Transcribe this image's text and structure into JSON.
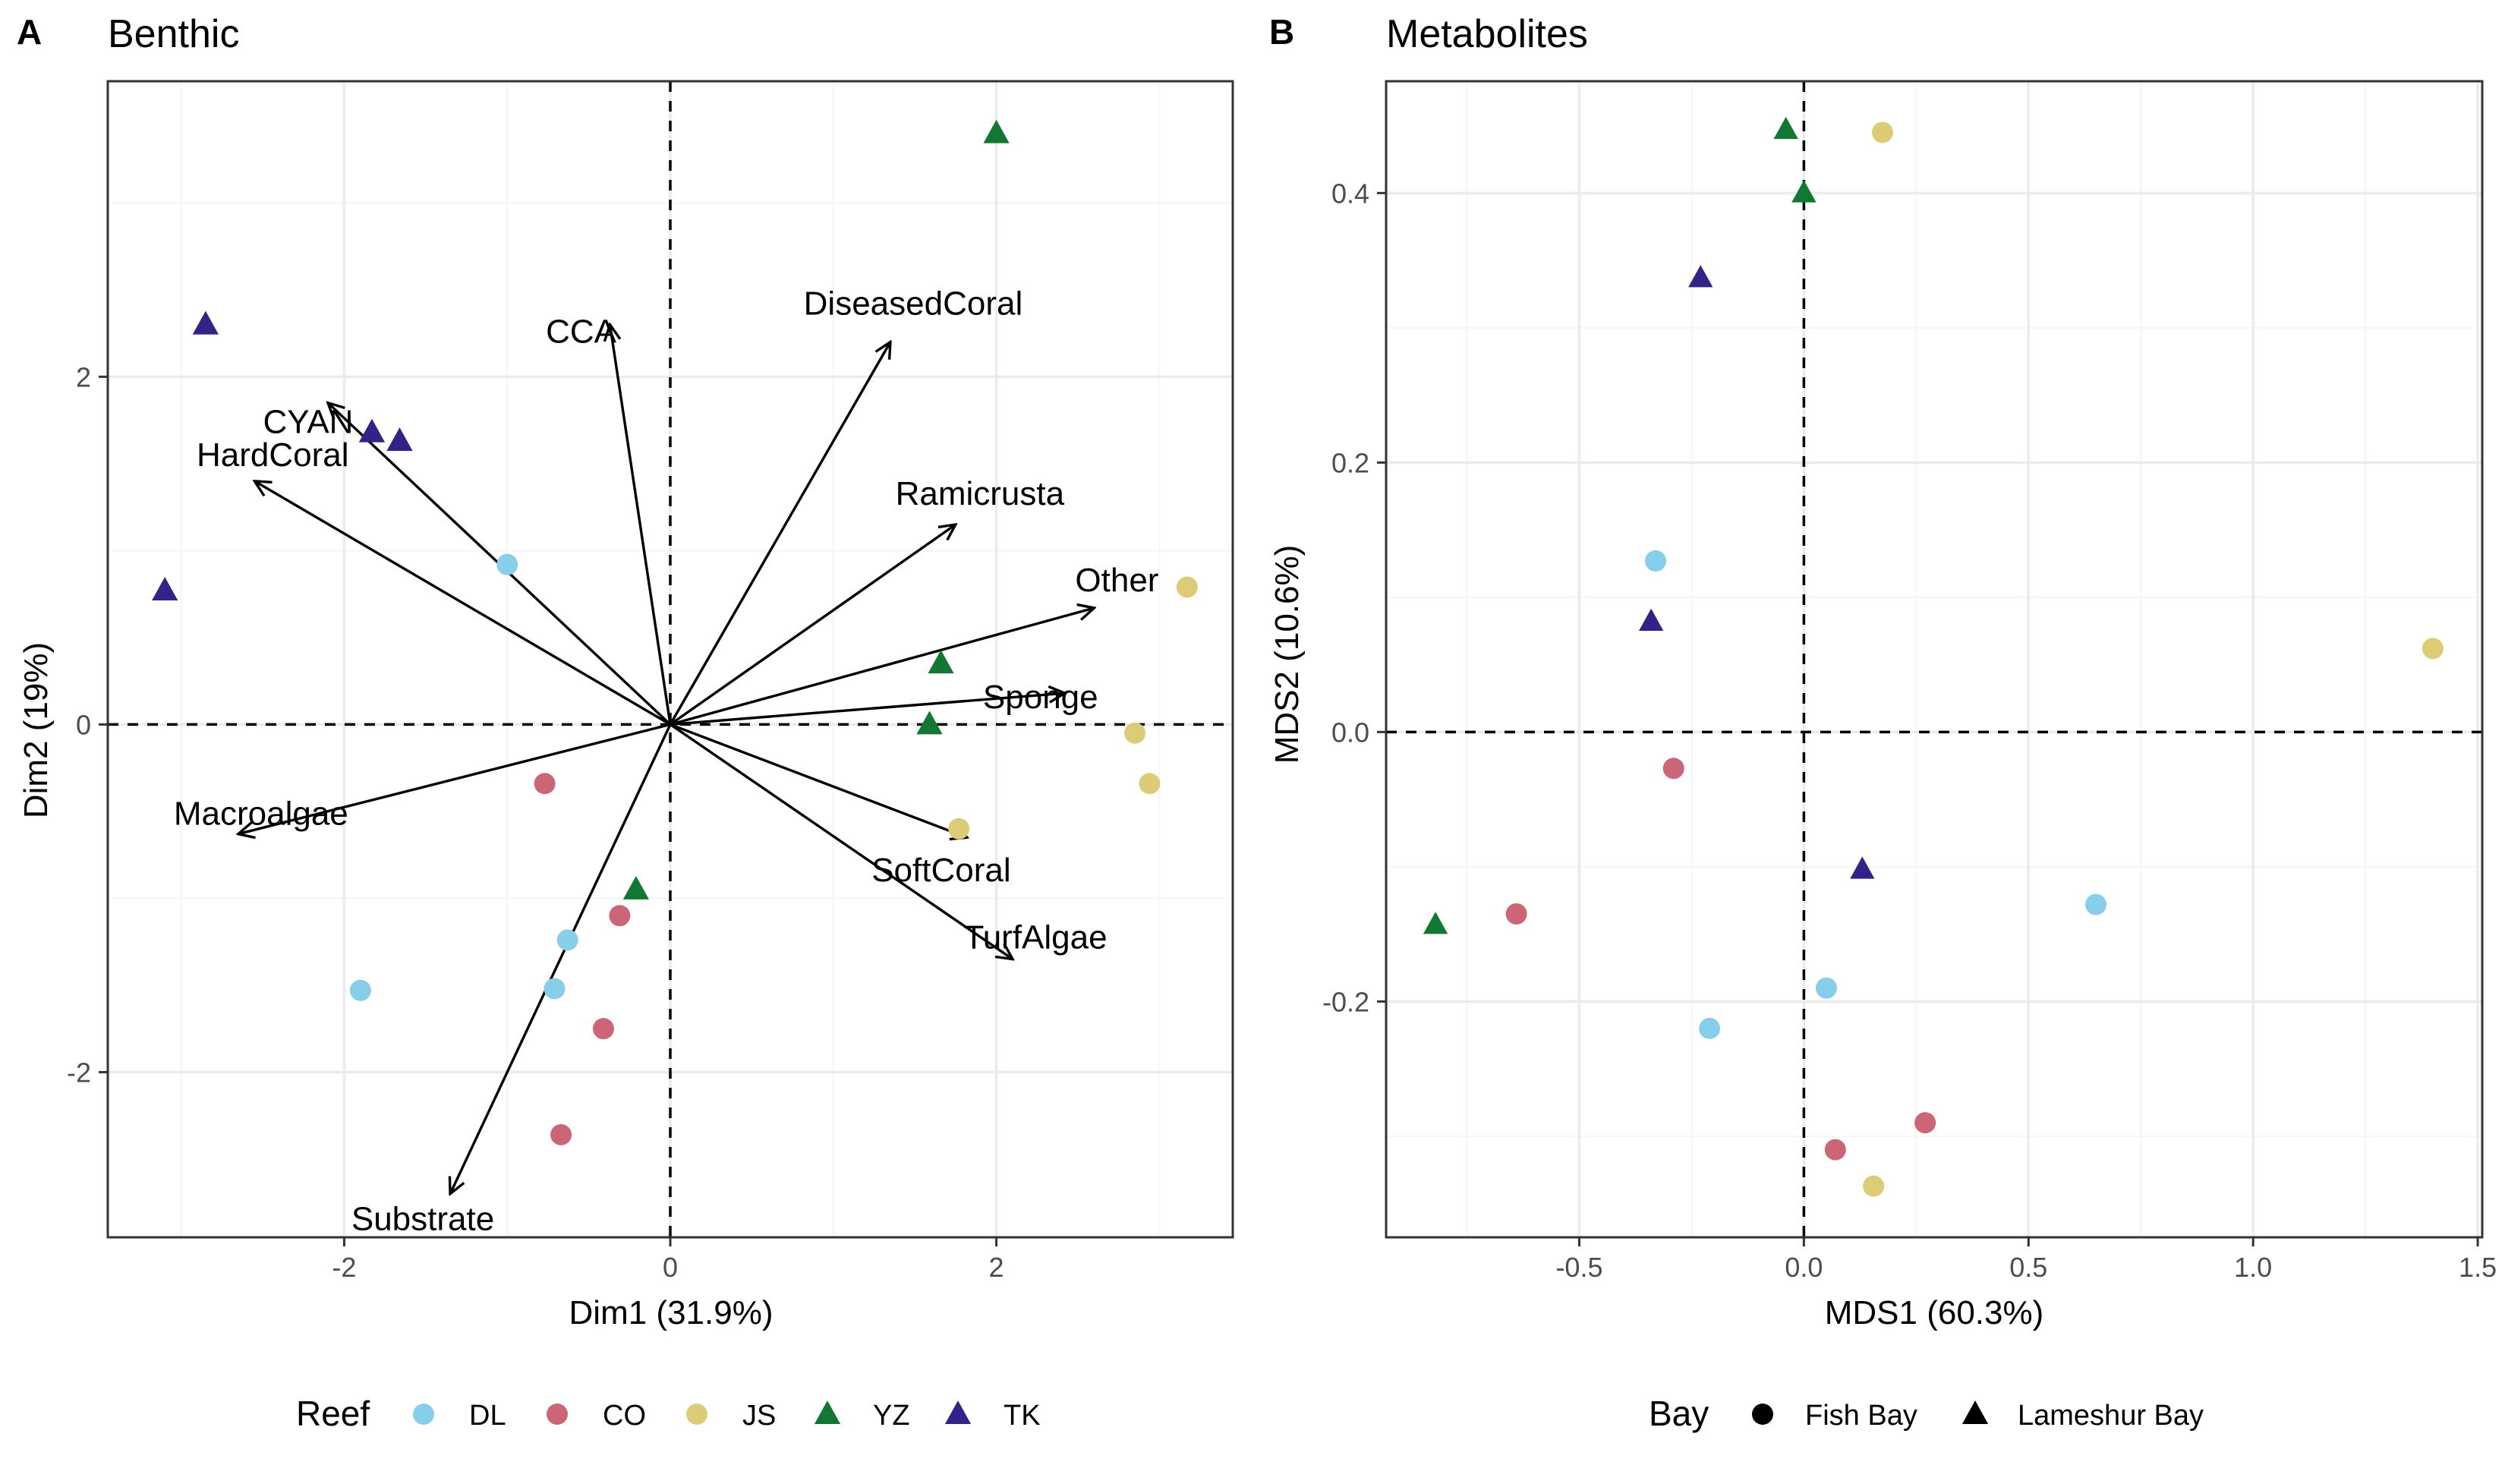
{
  "figure": {
    "legend": {
      "reef_title": "Reef",
      "bay_title": "Bay"
    }
  },
  "colors": {
    "DL": "#87CEEB",
    "CO": "#CC6677",
    "JS": "#DDCC77",
    "YZ": "#117733",
    "TK": "#332288",
    "axis": "#333333",
    "grid": "#EBEBEB",
    "grid_minor": "#F5F5F5",
    "tick_label": "#4D4D4D"
  },
  "chart_data": [
    {
      "type": "scatter",
      "panel_tag": "A",
      "title": "Benthic",
      "xlabel": "Dim1 (31.9%)",
      "ylabel": "Dim2 (19%)",
      "xlim": [
        -3.45,
        3.45
      ],
      "ylim": [
        -2.95,
        3.7
      ],
      "xticks": [
        -2,
        0,
        2
      ],
      "yticks": [
        -2,
        0,
        2
      ],
      "xtick_labels": [
        "-2",
        "0",
        "2"
      ],
      "ytick_labels": [
        "-2",
        "0",
        "2"
      ],
      "grid": true,
      "reference_lines": {
        "x": 0,
        "y": 0
      },
      "vectors": [
        {
          "label": "CCA",
          "x": -0.37,
          "y": 2.3
        },
        {
          "label": "DiseasedCoral",
          "x": 1.35,
          "y": 2.2
        },
        {
          "label": "CYAN",
          "x": -2.1,
          "y": 1.85
        },
        {
          "label": "HardCoral",
          "x": -2.55,
          "y": 1.4
        },
        {
          "label": "Ramicrusta",
          "x": 1.75,
          "y": 1.15
        },
        {
          "label": "Other",
          "x": 2.6,
          "y": 0.67
        },
        {
          "label": "Sponge",
          "x": 2.42,
          "y": 0.18
        },
        {
          "label": "Macroalgae",
          "x": -2.65,
          "y": -0.63
        },
        {
          "label": "SoftCoral",
          "x": 1.82,
          "y": -0.65
        },
        {
          "label": "TurfAlgae",
          "x": 2.1,
          "y": -1.35
        },
        {
          "label": "Substrate",
          "x": -1.35,
          "y": -2.7
        }
      ],
      "series": [
        {
          "name": "DL",
          "shape": "circle",
          "points": [
            [
              -1.0,
              0.92
            ],
            [
              -0.63,
              -1.24
            ],
            [
              -0.71,
              -1.52
            ],
            [
              -1.9,
              -1.53
            ]
          ]
        },
        {
          "name": "CO",
          "shape": "circle",
          "points": [
            [
              -0.77,
              -0.34
            ],
            [
              -0.31,
              -1.1
            ],
            [
              -0.41,
              -1.75
            ],
            [
              -0.67,
              -2.36
            ]
          ]
        },
        {
          "name": "JS",
          "shape": "circle",
          "points": [
            [
              3.17,
              0.79
            ],
            [
              2.85,
              -0.05
            ],
            [
              2.94,
              -0.34
            ],
            [
              1.77,
              -0.6
            ]
          ]
        },
        {
          "name": "YZ",
          "shape": "triangle",
          "points": [
            [
              2.0,
              3.4
            ],
            [
              1.66,
              0.35
            ],
            [
              1.59,
              0.0
            ],
            [
              -0.21,
              -0.95
            ]
          ]
        },
        {
          "name": "TK",
          "shape": "triangle",
          "points": [
            [
              -2.85,
              2.3
            ],
            [
              -1.83,
              1.68
            ],
            [
              -1.66,
              1.63
            ],
            [
              -3.1,
              0.77
            ]
          ]
        }
      ]
    },
    {
      "type": "scatter",
      "panel_tag": "B",
      "title": "Metabolites",
      "xlabel": "MDS1 (60.3%)",
      "ylabel": "MDS2 (10.6%)",
      "xlim": [
        -0.93,
        1.51
      ],
      "ylim": [
        -0.375,
        0.483
      ],
      "xticks": [
        -0.5,
        0.0,
        0.5,
        1.0,
        1.5
      ],
      "yticks": [
        -0.2,
        0.0,
        0.2,
        0.4
      ],
      "xtick_labels": [
        "-0.5",
        "0.0",
        "0.5",
        "1.0",
        "1.5"
      ],
      "ytick_labels": [
        "-0.2",
        "0.0",
        "0.2",
        "0.4"
      ],
      "grid": true,
      "reference_lines": {
        "x": 0,
        "y": 0
      },
      "series": [
        {
          "name": "DL",
          "shape": "circle",
          "points": [
            [
              -0.33,
              0.127
            ],
            [
              0.65,
              -0.128
            ],
            [
              0.05,
              -0.19
            ],
            [
              -0.21,
              -0.22
            ]
          ]
        },
        {
          "name": "CO",
          "shape": "circle",
          "points": [
            [
              -0.29,
              -0.027
            ],
            [
              -0.64,
              -0.135
            ],
            [
              0.07,
              -0.31
            ],
            [
              0.27,
              -0.29
            ]
          ]
        },
        {
          "name": "JS",
          "shape": "circle",
          "points": [
            [
              0.175,
              0.445
            ],
            [
              1.4,
              0.062
            ],
            [
              0.155,
              -0.337
            ]
          ]
        },
        {
          "name": "YZ",
          "shape": "triangle",
          "points": [
            [
              -0.04,
              0.447
            ],
            [
              0.0,
              0.4
            ],
            [
              -0.82,
              -0.143
            ]
          ]
        },
        {
          "name": "TK",
          "shape": "triangle",
          "points": [
            [
              -0.23,
              0.337
            ],
            [
              -0.34,
              0.082
            ],
            [
              0.13,
              -0.102
            ]
          ]
        }
      ]
    }
  ],
  "legend_reef": {
    "title": "Reef",
    "entries": [
      {
        "label": "DL",
        "shape": "circle"
      },
      {
        "label": "CO",
        "shape": "circle"
      },
      {
        "label": "JS",
        "shape": "circle"
      },
      {
        "label": "YZ",
        "shape": "triangle"
      },
      {
        "label": "TK",
        "shape": "triangle"
      }
    ]
  },
  "legend_bay": {
    "title": "Bay",
    "entries": [
      {
        "label": "Fish Bay",
        "shape": "circle"
      },
      {
        "label": "Lameshur Bay",
        "shape": "triangle"
      }
    ]
  }
}
